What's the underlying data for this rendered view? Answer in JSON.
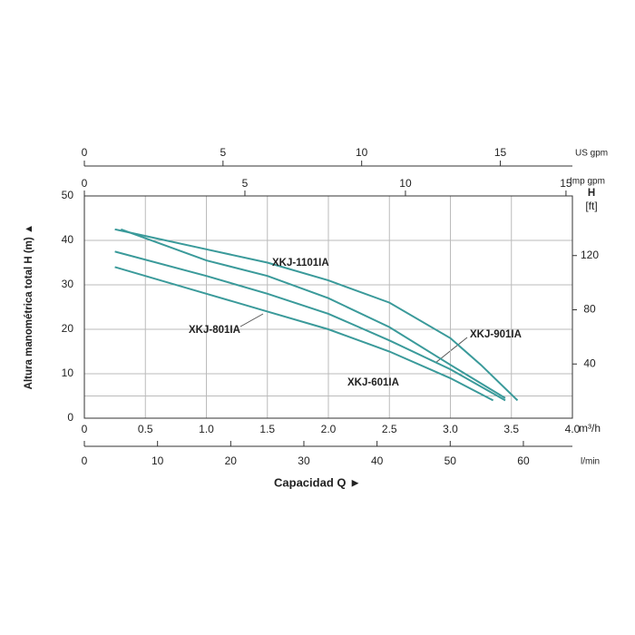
{
  "chart_data": {
    "type": "line",
    "xlabel": "Capacidad  Q  ►",
    "ylabel": "Altura manométrica total H  (m)  ▲",
    "xlim": [
      0,
      4
    ],
    "xticks": [
      0,
      0.5,
      {
        "value": 1,
        "label": "1.0"
      },
      1.5,
      {
        "value": 2,
        "label": "2.0"
      },
      2.5,
      {
        "value": 3,
        "label": "3.0"
      },
      3.5,
      {
        "value": 4,
        "label": "4.0"
      }
    ],
    "x_unit": "m³/h",
    "ylim": [
      0,
      50
    ],
    "yticks": [
      0,
      10,
      20,
      30,
      40,
      50
    ],
    "hlines": [
      5
    ],
    "y2label": "H",
    "y2unit": "[ft]",
    "y2lim": [
      0,
      164
    ],
    "y2ticks": [
      40,
      80,
      120
    ],
    "us_gpm": {
      "label": "US gpm",
      "lim": [
        0,
        17.6
      ],
      "ticks": [
        0,
        5,
        10,
        15
      ]
    },
    "imp_gpm": {
      "label": "Imp gpm",
      "lim": [
        0,
        15.2
      ],
      "ticks": [
        0,
        5,
        10,
        15
      ]
    },
    "lmin": {
      "label": "l/min",
      "lim": [
        0,
        66.7
      ],
      "ticks": [
        0,
        10,
        20,
        30,
        40,
        50,
        60
      ]
    },
    "grid": true,
    "color": "#3a9a9a",
    "series": [
      {
        "name": "XKJ-1101IA",
        "x": [
          0.25,
          0.5,
          1.0,
          1.5,
          2.0,
          2.5,
          3.0,
          3.25,
          3.55
        ],
        "values": [
          42.5,
          41,
          38,
          35,
          31,
          26,
          18,
          12,
          4
        ]
      },
      {
        "name": "XKJ-901IA",
        "x": [
          0.3,
          1.0,
          1.5,
          2.0,
          2.5,
          3.0,
          3.45
        ],
        "values": [
          42.5,
          35.5,
          32,
          27,
          20.5,
          12,
          4.5
        ]
      },
      {
        "name": "XKJ-801IA",
        "x": [
          0.25,
          1.0,
          1.5,
          2.0,
          2.5,
          3.0,
          3.45
        ],
        "values": [
          37.5,
          32,
          28,
          23.5,
          17.5,
          11,
          4
        ]
      },
      {
        "name": "XKJ-601IA",
        "x": [
          0.25,
          1.0,
          1.5,
          2.0,
          2.5,
          3.0,
          3.35
        ],
        "values": [
          34,
          28,
          24,
          20,
          15,
          9,
          4
        ]
      }
    ]
  }
}
